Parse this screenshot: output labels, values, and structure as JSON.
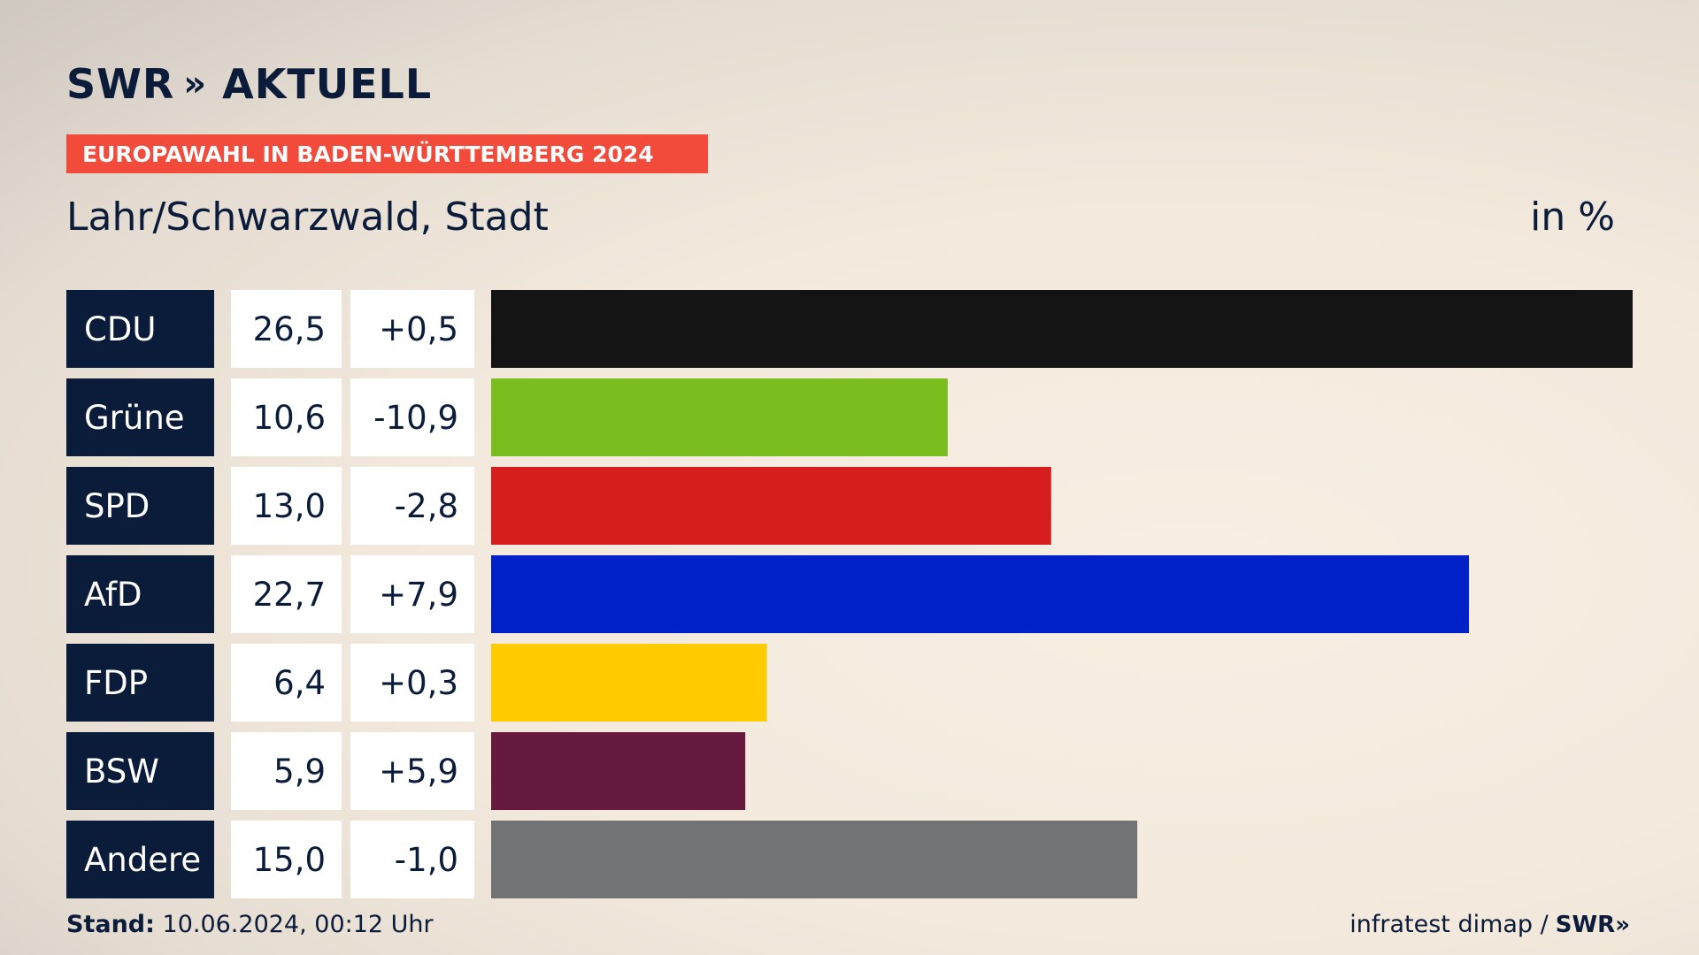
{
  "header": {
    "logo_brand": "SWR",
    "logo_arrows": "»",
    "logo_suffix": "AKTUELL",
    "banner": "EUROPAWAHL IN BADEN-WÜRTTEMBERG 2024",
    "region": "Lahr/Schwarzwald, Stadt",
    "unit": "in %"
  },
  "footer": {
    "stand_label": "Stand:",
    "stand_value": "10.06.2024, 00:12 Uhr",
    "source": "infratest dimap /",
    "source_logo": "SWR»"
  },
  "colors": {
    "label_bg": "#0b1c3a",
    "cell_bg": "#ffffff",
    "text": "#0b1c3a"
  },
  "chart_data": {
    "type": "bar",
    "orientation": "horizontal",
    "categories": [
      "CDU",
      "Grüne",
      "SPD",
      "AfD",
      "FDP",
      "BSW",
      "Andere"
    ],
    "values": [
      26.5,
      10.6,
      13.0,
      22.7,
      6.4,
      5.9,
      15.0
    ],
    "value_labels": [
      "26,5",
      "10,6",
      "13,0",
      "22,7",
      "6,4",
      "5,9",
      "15,0"
    ],
    "change_labels": [
      "+0,5",
      "-10,9",
      "-2,8",
      "+7,9",
      "+0,3",
      "+5,9",
      "-1,0"
    ],
    "changes": [
      0.5,
      -10.9,
      -2.8,
      7.9,
      0.3,
      5.9,
      -1.0
    ],
    "bar_colors": [
      "#141414",
      "#7bbd1e",
      "#d71e1e",
      "#0021c8",
      "#ffcc00",
      "#661a40",
      "#727375"
    ],
    "xlim": [
      0,
      26.5
    ],
    "grid": false
  }
}
